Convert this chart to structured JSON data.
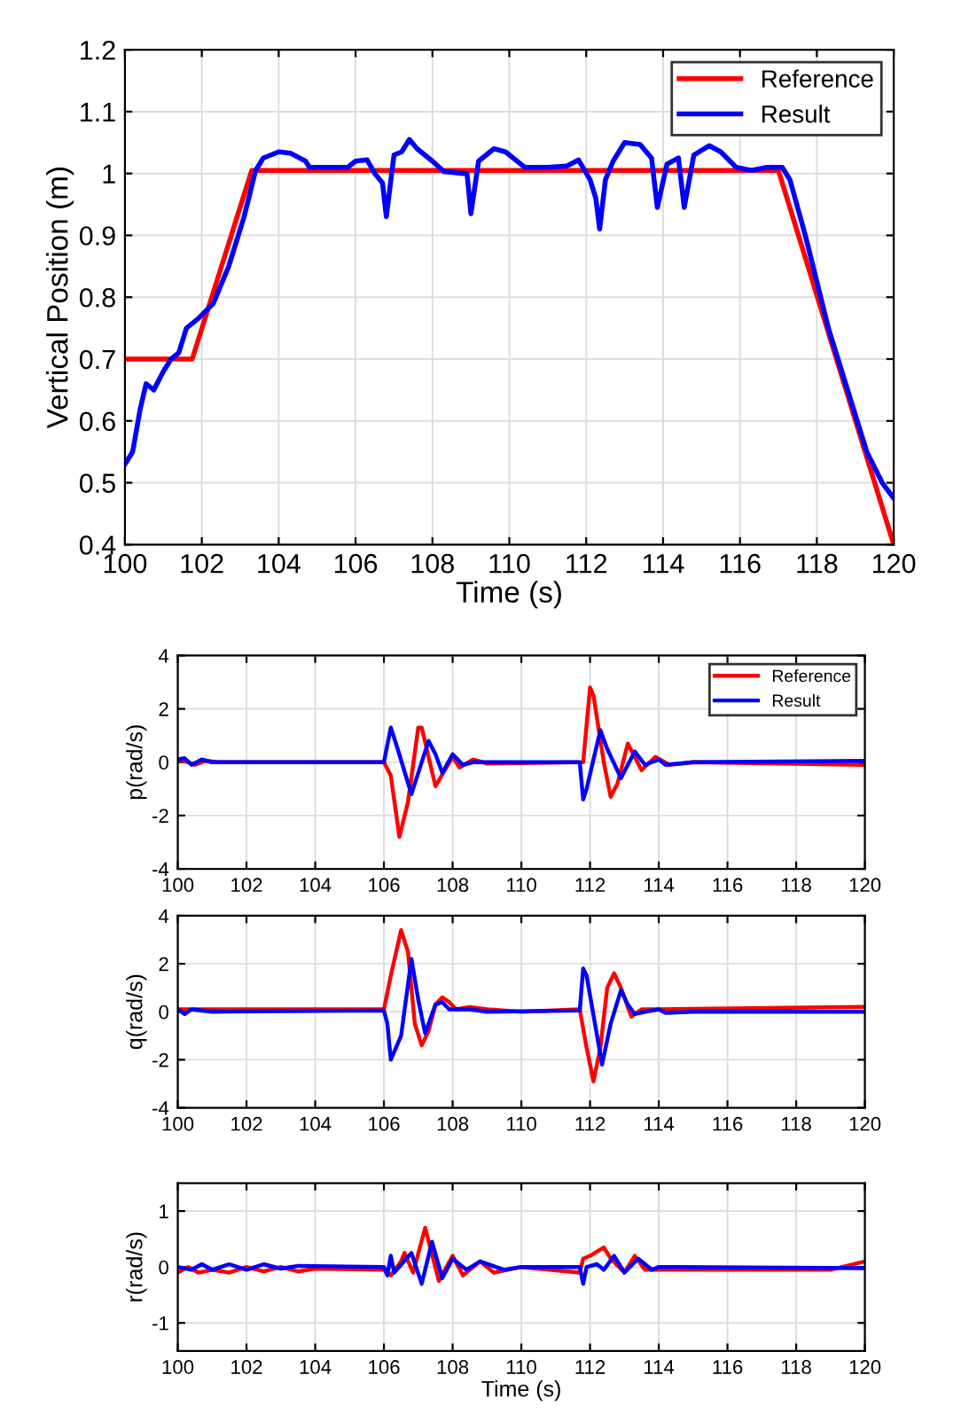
{
  "chart_data": [
    {
      "type": "line",
      "xlabel": "Time (s)",
      "ylabel": "Vertical Position (m)",
      "xlim": [
        100,
        120
      ],
      "xticks": [
        100,
        102,
        104,
        106,
        108,
        110,
        112,
        114,
        116,
        118,
        120
      ],
      "ylim": [
        0.4,
        1.2
      ],
      "yticks": [
        0.4,
        0.5,
        0.6,
        0.7,
        0.8,
        0.9,
        1,
        1.1,
        1.2
      ],
      "grid": true,
      "legend": "top right",
      "line_style": "solid",
      "marker": "none",
      "series": [
        {
          "name": "Reference",
          "color": "#ff0000",
          "x": [
            100,
            101.75,
            103.3,
            117,
            120
          ],
          "values": [
            0.7,
            0.7,
            1.005,
            1.005,
            0.4
          ]
        },
        {
          "name": "Result",
          "color": "#0000ff",
          "x": [
            100,
            100.2,
            100.4,
            100.55,
            100.75,
            101,
            101.2,
            101.4,
            101.6,
            101.9,
            102.3,
            102.7,
            103.1,
            103.4,
            103.6,
            104,
            104.3,
            104.7,
            104.8,
            105.5,
            105.8,
            106,
            106.3,
            106.5,
            106.7,
            106.8,
            107,
            107.2,
            107.4,
            107.6,
            108,
            108.3,
            108.8,
            108.9,
            109,
            109.2,
            109.6,
            109.9,
            110.4,
            111,
            111.5,
            111.8,
            112.1,
            112.25,
            112.35,
            112.5,
            112.7,
            113,
            113.4,
            113.7,
            113.85,
            114.1,
            114.4,
            114.55,
            114.8,
            115.2,
            115.5,
            115.9,
            116.3,
            116.7,
            117.1,
            117.3,
            117.7,
            118.3,
            118.8,
            119.3,
            119.7,
            120
          ],
          "values": [
            0.53,
            0.55,
            0.62,
            0.66,
            0.65,
            0.68,
            0.7,
            0.71,
            0.75,
            0.765,
            0.79,
            0.85,
            0.93,
            1.005,
            1.025,
            1.035,
            1.033,
            1.02,
            1.01,
            1.01,
            1.01,
            1.02,
            1.022,
            1.0,
            0.985,
            0.93,
            1.03,
            1.035,
            1.055,
            1.04,
            1.02,
            1.003,
            1.0,
            1.0,
            0.935,
            1.02,
            1.04,
            1.035,
            1.01,
            1.01,
            1.012,
            1.022,
            0.99,
            0.96,
            0.91,
            0.99,
            1.02,
            1.05,
            1.047,
            1.025,
            0.945,
            1.015,
            1.025,
            0.945,
            1.03,
            1.045,
            1.035,
            1.01,
            1.005,
            1.01,
            1.01,
            0.99,
            0.9,
            0.75,
            0.65,
            0.55,
            0.5,
            0.475
          ]
        }
      ]
    },
    {
      "type": "line",
      "ylabel": "p(rad/s)",
      "xlim": [
        100,
        120
      ],
      "xticks": [
        100,
        102,
        104,
        106,
        108,
        110,
        112,
        114,
        116,
        118,
        120
      ],
      "ylim": [
        -4,
        4
      ],
      "yticks": [
        -4,
        -2,
        0,
        2,
        4
      ],
      "grid": true,
      "legend": "top right",
      "line_style": "solid",
      "marker": "none",
      "series": [
        {
          "name": "Reference",
          "color": "#ff0000",
          "x": [
            100,
            100.3,
            100.5,
            100.8,
            101.2,
            106,
            106.2,
            106.45,
            106.7,
            107,
            107.1,
            107.5,
            108,
            108.2,
            108.6,
            109,
            111.8,
            112,
            112.1,
            112.4,
            112.6,
            112.8,
            113.1,
            113.5,
            113.9,
            114.3,
            115,
            120
          ],
          "values": [
            0.1,
            0.0,
            -0.1,
            0.05,
            0,
            0,
            -0.5,
            -2.8,
            -1.5,
            1.3,
            1.3,
            -0.9,
            0.2,
            -0.2,
            0.1,
            -0.05,
            0,
            2.8,
            2.5,
            0,
            -1.3,
            -0.8,
            0.7,
            -0.3,
            0.2,
            -0.1,
            0,
            -0.1
          ]
        },
        {
          "name": "Result",
          "color": "#0000ff",
          "x": [
            100,
            100.2,
            100.4,
            100.7,
            101,
            106,
            106.2,
            106.4,
            106.8,
            107.3,
            107.5,
            107.7,
            108,
            108.3,
            108.6,
            111.7,
            111.8,
            111.9,
            112.3,
            112.5,
            112.9,
            113.3,
            113.6,
            114,
            114.2,
            115,
            120
          ],
          "values": [
            0.1,
            0.15,
            -0.1,
            0.1,
            0,
            0,
            1.3,
            0.5,
            -1.2,
            0.8,
            0.3,
            -0.4,
            0.3,
            -0.1,
            0,
            0,
            -1.4,
            -1.0,
            1.2,
            0.5,
            -0.6,
            0.4,
            -0.1,
            0.1,
            -0.1,
            0,
            0.05
          ]
        }
      ]
    },
    {
      "type": "line",
      "ylabel": "q(rad/s)",
      "xlim": [
        100,
        120
      ],
      "xticks": [
        100,
        102,
        104,
        106,
        108,
        110,
        112,
        114,
        116,
        118,
        120
      ],
      "ylim": [
        -4,
        4
      ],
      "yticks": [
        -4,
        -2,
        0,
        2,
        4
      ],
      "grid": true,
      "line_style": "solid",
      "marker": "none",
      "series": [
        {
          "color": "#ff0000",
          "x": [
            100,
            106,
            106.2,
            106.5,
            106.7,
            106.9,
            107.1,
            107.3,
            107.5,
            107.7,
            107.9,
            108.1,
            108.5,
            109,
            110,
            111.7,
            111.9,
            112.1,
            112.3,
            112.5,
            112.7,
            112.9,
            113.2,
            113.5,
            114,
            120
          ],
          "values": [
            0.1,
            0.1,
            1.5,
            3.4,
            2.5,
            -0.5,
            -1.4,
            -0.8,
            0.3,
            0.6,
            0.4,
            0.1,
            0.2,
            0.1,
            0,
            0.1,
            -1.5,
            -2.9,
            -1.5,
            1.0,
            1.6,
            1.0,
            -0.2,
            0.1,
            0.1,
            0.2
          ]
        },
        {
          "color": "#0000ff",
          "x": [
            100,
            100.2,
            100.4,
            101,
            106,
            106.1,
            106.2,
            106.5,
            106.8,
            107,
            107.2,
            107.5,
            107.7,
            107.9,
            108.5,
            109,
            111.7,
            111.8,
            111.9,
            112.35,
            112.6,
            112.9,
            113.1,
            113.3,
            113.6,
            114,
            114.2,
            115,
            120
          ],
          "values": [
            0.1,
            -0.1,
            0.1,
            0,
            0.05,
            -0.5,
            -2.0,
            -1.0,
            2.2,
            0.5,
            -0.9,
            0.3,
            0.4,
            0.1,
            0.1,
            0,
            0.05,
            1.8,
            1.5,
            -2.2,
            -0.5,
            0.9,
            0.3,
            -0.1,
            0,
            0.1,
            -0.05,
            0,
            0
          ]
        }
      ]
    },
    {
      "type": "line",
      "xlabel": "Time (s)",
      "ylabel": "r(rad/s)",
      "xlim": [
        100,
        120
      ],
      "xticks": [
        100,
        102,
        104,
        106,
        108,
        110,
        112,
        114,
        116,
        118,
        120
      ],
      "ylim": [
        -1.5,
        1.5
      ],
      "yticks": [
        -1,
        0,
        1
      ],
      "grid": true,
      "line_style": "solid",
      "marker": "none",
      "series": [
        {
          "color": "#ff0000",
          "x": [
            100,
            100.3,
            100.6,
            101,
            101.5,
            102,
            102.5,
            103,
            103.5,
            104,
            106,
            106.2,
            106.5,
            106.6,
            106.85,
            107.2,
            107.6,
            108,
            108.3,
            108.8,
            109.2,
            110,
            111.7,
            111.8,
            112,
            112.4,
            112.6,
            113,
            113.3,
            113.6,
            114,
            117,
            119,
            120
          ],
          "values": [
            -0.1,
            0,
            -0.1,
            -0.05,
            -0.1,
            0,
            -0.08,
            0,
            -0.08,
            -0.03,
            -0.05,
            -0.15,
            0.1,
            0.25,
            -0.1,
            0.7,
            -0.25,
            0.2,
            -0.15,
            0.1,
            -0.1,
            0,
            -0.1,
            0.15,
            0.2,
            0.35,
            0.15,
            -0.1,
            0.2,
            -0.05,
            -0.05,
            -0.05,
            -0.05,
            0.1
          ]
        },
        {
          "color": "#0000ff",
          "x": [
            100,
            100.4,
            100.7,
            101,
            101.5,
            102,
            102.5,
            103,
            103.5,
            106,
            106.1,
            106.2,
            106.3,
            106.8,
            107.1,
            107.4,
            107.7,
            108,
            108.4,
            108.8,
            109.5,
            110,
            111.7,
            111.8,
            111.9,
            112.2,
            112.4,
            112.7,
            113,
            113.4,
            113.8,
            114,
            120
          ],
          "values": [
            0,
            -0.05,
            0.05,
            -0.05,
            0.05,
            -0.05,
            0.05,
            -0.03,
            0.02,
            0,
            -0.15,
            0.2,
            -0.1,
            0.25,
            -0.3,
            0.45,
            -0.2,
            0.15,
            -0.05,
            0.1,
            -0.05,
            0,
            0,
            -0.3,
            0,
            0.05,
            -0.05,
            0.2,
            -0.1,
            0.15,
            -0.05,
            0,
            -0.02
          ]
        }
      ]
    }
  ]
}
